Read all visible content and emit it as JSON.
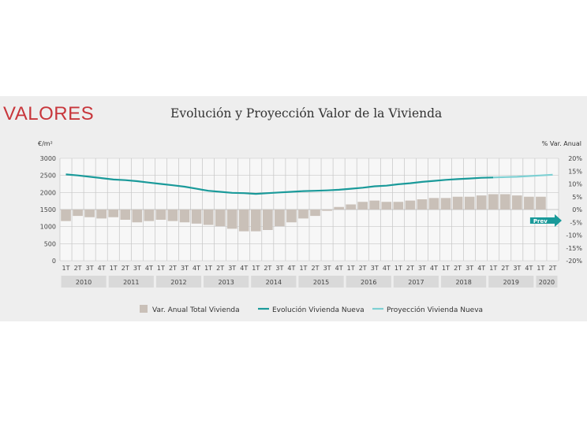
{
  "header": {
    "section_title": "VALORES"
  },
  "chart_data": {
    "type": "bar+line",
    "title": "Evolución y Proyección Valor de la Vivienda",
    "y_left_label": "€/m²",
    "y_right_label": "% Var. Anual",
    "y_left_ticks": [
      "0",
      "500",
      "1000",
      "1500",
      "2000",
      "2500",
      "3000"
    ],
    "y_left_range": [
      0,
      3000
    ],
    "y_right_ticks": [
      "-20%",
      "-15%",
      "-10%",
      "-5%",
      "0%",
      "5%",
      "10%",
      "15%",
      "20%"
    ],
    "y_right_range": [
      -20,
      20
    ],
    "quarters": [
      "1T",
      "2T",
      "3T",
      "4T",
      "1T",
      "2T",
      "3T",
      "4T",
      "1T",
      "2T",
      "3T",
      "4T",
      "1T",
      "2T",
      "3T",
      "4T",
      "1T",
      "2T",
      "3T",
      "4T",
      "1T",
      "2T",
      "3T",
      "4T",
      "1T",
      "2T",
      "3T",
      "4T",
      "1T",
      "2T",
      "3T",
      "4T",
      "1T",
      "2T",
      "3T",
      "4T",
      "1T",
      "2T",
      "3T",
      "4T",
      "1T",
      "2T"
    ],
    "years": [
      "2010",
      "2011",
      "2012",
      "2013",
      "2014",
      "2015",
      "2016",
      "2017",
      "2018",
      "2019",
      "2020"
    ],
    "year_spans": [
      4,
      4,
      4,
      4,
      4,
      4,
      4,
      4,
      4,
      4,
      2
    ],
    "series": [
      {
        "name": "Var. Anual Total Vivienda",
        "kind": "bar",
        "axis": "right",
        "color": "#c9c0b8",
        "values": [
          -4.5,
          -2.5,
          -3,
          -3.5,
          -3,
          -4,
          -5,
          -4.5,
          -4,
          -4.5,
          -5,
          -5.5,
          -6,
          -6.5,
          -7.5,
          -8.5,
          -8.5,
          -8,
          -6.5,
          -5,
          -3.5,
          -2.5,
          -0.5,
          1,
          2,
          3,
          3.5,
          3,
          3,
          3.5,
          4,
          4.5,
          4.5,
          5,
          5,
          5.5,
          6,
          6,
          5.5,
          5,
          5,
          null
        ]
      },
      {
        "name": "Evolución Vivienda Nueva",
        "kind": "line",
        "axis": "left",
        "color": "#1a9a9a",
        "values": [
          2530,
          2500,
          2460,
          2420,
          2380,
          2360,
          2330,
          2290,
          2250,
          2210,
          2170,
          2110,
          2050,
          2020,
          1990,
          1980,
          1960,
          1980,
          2000,
          2020,
          2040,
          2050,
          2060,
          2080,
          2110,
          2140,
          2180,
          2200,
          2240,
          2270,
          2310,
          2340,
          2370,
          2390,
          2410,
          2430,
          2440,
          null,
          null,
          null,
          null,
          null
        ]
      },
      {
        "name": "Proyección Vivienda Nueva",
        "kind": "line",
        "axis": "left",
        "color": "#7ed0d3",
        "values": [
          null,
          null,
          null,
          null,
          null,
          null,
          null,
          null,
          null,
          null,
          null,
          null,
          null,
          null,
          null,
          null,
          null,
          null,
          null,
          null,
          null,
          null,
          null,
          null,
          null,
          null,
          null,
          null,
          null,
          null,
          null,
          null,
          null,
          null,
          null,
          null,
          2440,
          2450,
          2460,
          2480,
          2500,
          2520
        ]
      }
    ],
    "annotation": "Prev"
  }
}
